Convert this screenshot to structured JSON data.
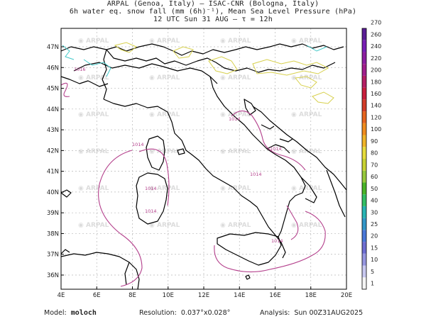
{
  "header": {
    "line1": "ARPAL (Genoa, Italy)  —  ISAC-CNR (Bologna, Italy)",
    "line2": "6h water eq. snow fall (mm (6h)⁻¹), Mean Sea Level Pressure (hPa)",
    "line3": "12 UTC Sun 31 AUG  —  τ = 12h"
  },
  "map": {
    "x_ticks": [
      "4E",
      "6E",
      "8E",
      "10E",
      "12E",
      "14E",
      "16E",
      "18E",
      "20E"
    ],
    "y_ticks": [
      "47N",
      "46N",
      "45N",
      "44N",
      "43N",
      "42N",
      "41N",
      "40N",
      "39N",
      "38N",
      "37N",
      "36N"
    ],
    "watermark": "ARPAL",
    "isobar_labels": [
      "1016",
      "1014",
      "1014",
      "1014",
      "1014",
      "1014",
      "1014",
      "1014"
    ]
  },
  "colorbar": {
    "levels": [
      "1",
      "5",
      "10",
      "15",
      "20",
      "25",
      "30",
      "40",
      "50",
      "60",
      "70",
      "80",
      "90",
      "100",
      "120",
      "140",
      "160",
      "180",
      "200",
      "220",
      "240",
      "260",
      "270"
    ],
    "colors": [
      "#f4f4f4",
      "#c8c8f0",
      "#9696e0",
      "#6e6ed2",
      "#4a78d8",
      "#3296c8",
      "#28b4b4",
      "#32be64",
      "#4ab428",
      "#96c83c",
      "#c8d232",
      "#e6dc3c",
      "#f0b428",
      "#f08c1e",
      "#e6641e",
      "#d23c28",
      "#c81e3c",
      "#b41e64",
      "#a01e8c",
      "#8c1ea0",
      "#781eb4",
      "#5a1e96"
    ]
  },
  "footer": {
    "model_label": "Model:",
    "model_value": "moloch",
    "resolution_label": "Resolution:",
    "resolution_value": "0.037°x0.028°",
    "analysis_label": "Analysis:",
    "analysis_value": "Sun 00Z31AUG2025"
  }
}
